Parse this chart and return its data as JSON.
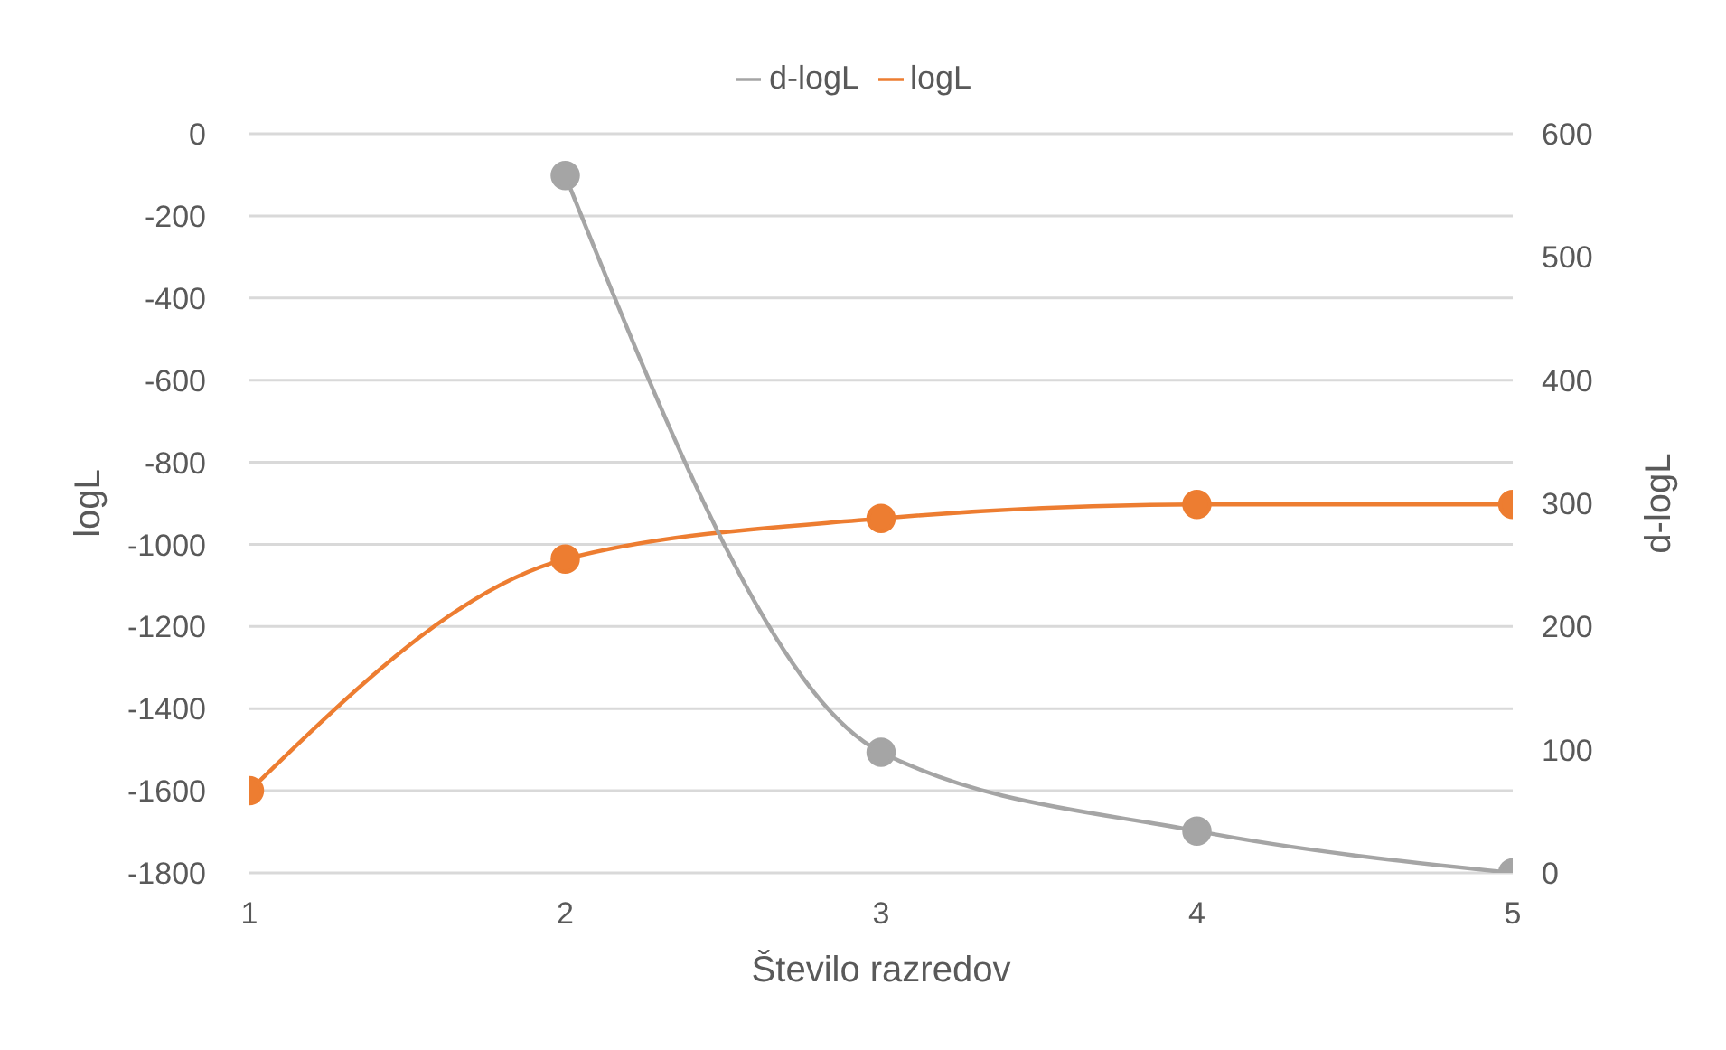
{
  "chart_data": {
    "type": "line",
    "xlabel": "Število razredov",
    "ylabel": "logL",
    "y2label": "d-logL",
    "x": [
      1,
      2,
      3,
      4,
      5
    ],
    "xlim": [
      1,
      5
    ],
    "xticks": [
      1,
      2,
      3,
      4,
      5
    ],
    "ylim": [
      -1800,
      0
    ],
    "yticks": [
      -1800,
      -1600,
      -1400,
      -1200,
      -1000,
      -800,
      -600,
      -400,
      -200,
      0
    ],
    "y2lim": [
      0,
      600
    ],
    "y2ticks": [
      0,
      100,
      200,
      300,
      400,
      500,
      600
    ],
    "grid": "y",
    "legend": "top",
    "marker": "circle",
    "line_style": "solid",
    "series": [
      {
        "name": "logL",
        "color": "#ed7d31",
        "values": [
          -1600,
          -1036,
          -937,
          -903,
          -903
        ]
      },
      {
        "name": "d-logL",
        "color": "#a5a5a5",
        "axis": "y2",
        "values": [
          null,
          566,
          98,
          34,
          0
        ]
      }
    ]
  }
}
